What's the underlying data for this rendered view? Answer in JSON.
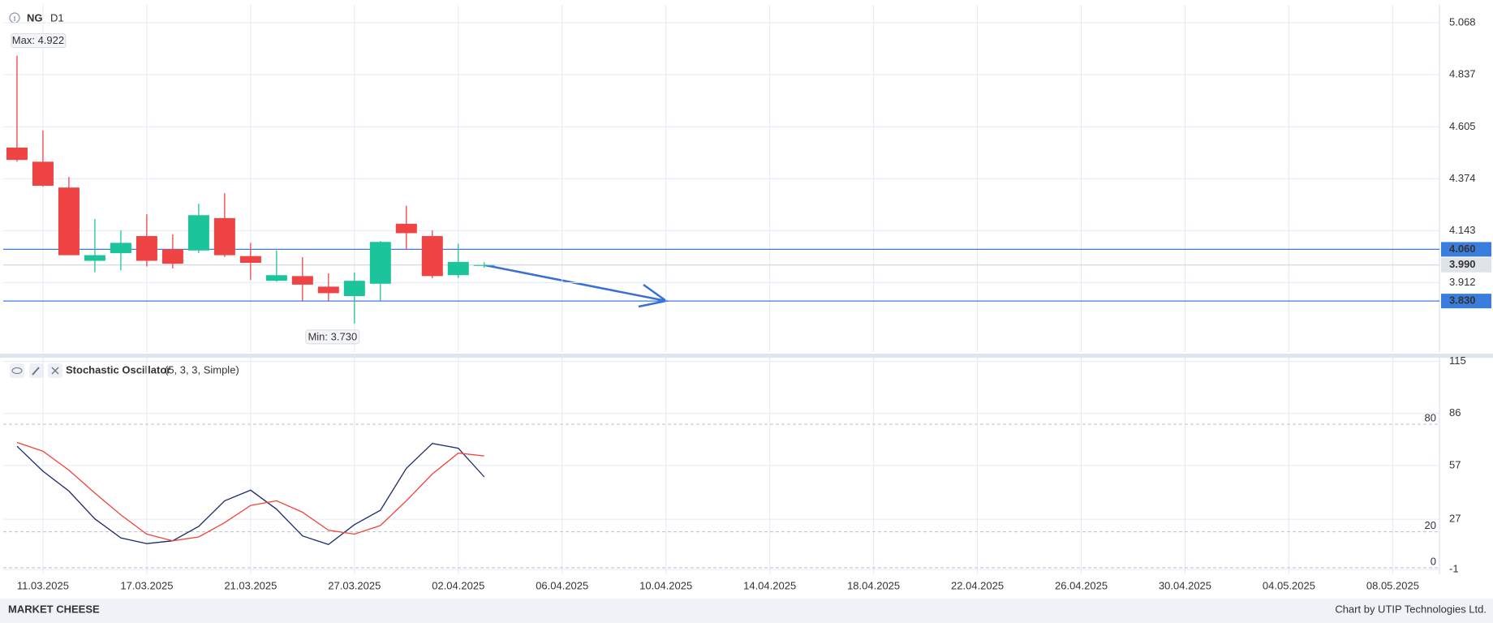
{
  "header": {
    "symbol": "NG",
    "timeframe": "D1"
  },
  "chart_data": [
    {
      "type": "candlestick",
      "x": [
        0,
        1,
        2,
        3,
        4,
        5,
        6,
        7,
        8,
        9,
        10,
        11,
        12,
        13,
        14,
        15,
        16,
        17,
        18
      ],
      "open": [
        4.513,
        4.45,
        4.335,
        4.009,
        4.043,
        4.119,
        4.06,
        4.055,
        4.199,
        4.03,
        3.92,
        3.941,
        3.894,
        3.852,
        3.907,
        4.174,
        4.119,
        3.945,
        3.99
      ],
      "high": [
        4.922,
        4.589,
        4.382,
        4.195,
        4.144,
        4.216,
        4.127,
        4.263,
        4.31,
        4.089,
        4.055,
        4.025,
        3.953,
        3.957,
        4.097,
        4.254,
        4.144,
        4.085,
        4.003
      ],
      "low": [
        4.45,
        4.339,
        4.034,
        3.958,
        3.967,
        3.984,
        3.975,
        4.043,
        4.026,
        3.924,
        3.916,
        3.831,
        3.831,
        3.73,
        3.831,
        4.06,
        3.932,
        3.932,
        3.978
      ],
      "close": [
        4.458,
        4.343,
        4.034,
        4.034,
        4.089,
        4.009,
        3.996,
        4.212,
        4.034,
        4.0,
        3.945,
        3.903,
        3.865,
        3.92,
        4.093,
        4.132,
        3.941,
        4.004,
        3.99
      ],
      "up_color": "#1cc49c",
      "down_color": "#ef4444",
      "xlim": [
        -0.53,
        54.8
      ],
      "xticks": [
        {
          "value": 1,
          "label": "11.03.2025"
        },
        {
          "value": 5,
          "label": "17.03.2025"
        },
        {
          "value": 9,
          "label": "21.03.2025"
        },
        {
          "value": 13,
          "label": "27.03.2025"
        },
        {
          "value": 17,
          "label": "02.04.2025"
        },
        {
          "value": 21,
          "label": "06.04.2025"
        },
        {
          "value": 25,
          "label": "10.04.2025"
        },
        {
          "value": 29,
          "label": "14.04.2025"
        },
        {
          "value": 33,
          "label": "18.04.2025"
        },
        {
          "value": 37,
          "label": "22.04.2025"
        },
        {
          "value": 41,
          "label": "26.04.2025"
        },
        {
          "value": 45,
          "label": "30.04.2025"
        },
        {
          "value": 49,
          "label": "04.05.2025"
        },
        {
          "value": 53,
          "label": "08.05.2025"
        }
      ],
      "ylim": [
        3.603,
        5.148
      ],
      "yticks": [
        3.912,
        4.143,
        4.374,
        4.605,
        4.837,
        5.068
      ],
      "grid": true,
      "max_label": "Max: 4.922",
      "min_label": "Min: 3.730",
      "price_lines": [
        {
          "value": 4.06,
          "label": "4.060"
        },
        {
          "value": 3.83,
          "label": "3.830"
        }
      ],
      "line_color": "#3b7ddd",
      "current_price": {
        "value": 3.99,
        "label": "3.990"
      }
    },
    {
      "type": "line",
      "title": "Stochastic Oscillator",
      "subtitle": "(5, 3, 3, Simple)",
      "x": [
        0,
        1,
        2,
        3,
        4,
        5,
        6,
        7,
        8,
        9,
        10,
        11,
        12,
        13,
        14,
        15,
        16,
        17,
        18
      ],
      "series": [
        {
          "color": "#1b2a6b",
          "values": [
            67.7,
            53.8,
            42.7,
            27.2,
            16.6,
            13.4,
            15,
            23,
            37.3,
            43.2,
            32.6,
            17.7,
            12.9,
            24,
            32,
            55.4,
            69.3,
            66.6,
            50.6
          ]
        },
        {
          "color": "#f0443a",
          "values": [
            69.8,
            65,
            54.4,
            41.6,
            29.4,
            18.7,
            15,
            17.1,
            25.1,
            34.7,
            37.3,
            30.9,
            20.9,
            18.7,
            23.5,
            37.3,
            52.2,
            63.9,
            62.3
          ]
        }
      ],
      "xlim": [
        -0.53,
        54.8
      ],
      "ylim": [
        -3.7,
        117.1
      ],
      "yticks": [
        -1,
        27,
        57,
        86,
        115
      ],
      "levels": [
        0,
        20,
        80
      ],
      "grid": true
    }
  ],
  "footer": {
    "logo": "MARKET CHEESE",
    "credit": "Chart by UTIP Technologies Ltd."
  }
}
